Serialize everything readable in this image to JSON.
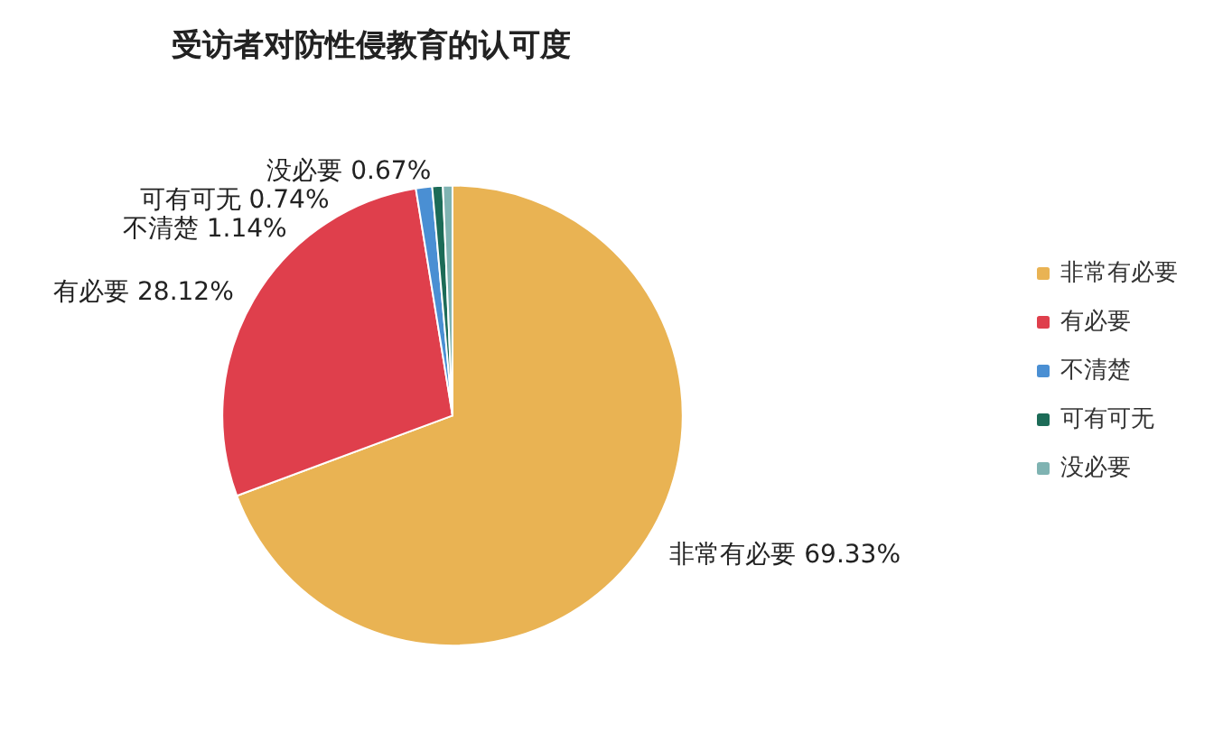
{
  "chart_data": {
    "type": "pie",
    "title": "受访者对防性侵教育的认可度",
    "categories": [
      "非常有必要",
      "有必要",
      "不清楚",
      "可有可无",
      "没必要"
    ],
    "values": [
      69.33,
      28.12,
      1.14,
      0.74,
      0.67
    ],
    "value_labels": [
      "69.33%",
      "28.12%",
      "1.14%",
      "0.74%",
      "0.67%"
    ],
    "colors": [
      "#e9b353",
      "#df3f4c",
      "#4a8fd3",
      "#1c6b57",
      "#7fb3b2"
    ],
    "legend": "right"
  }
}
